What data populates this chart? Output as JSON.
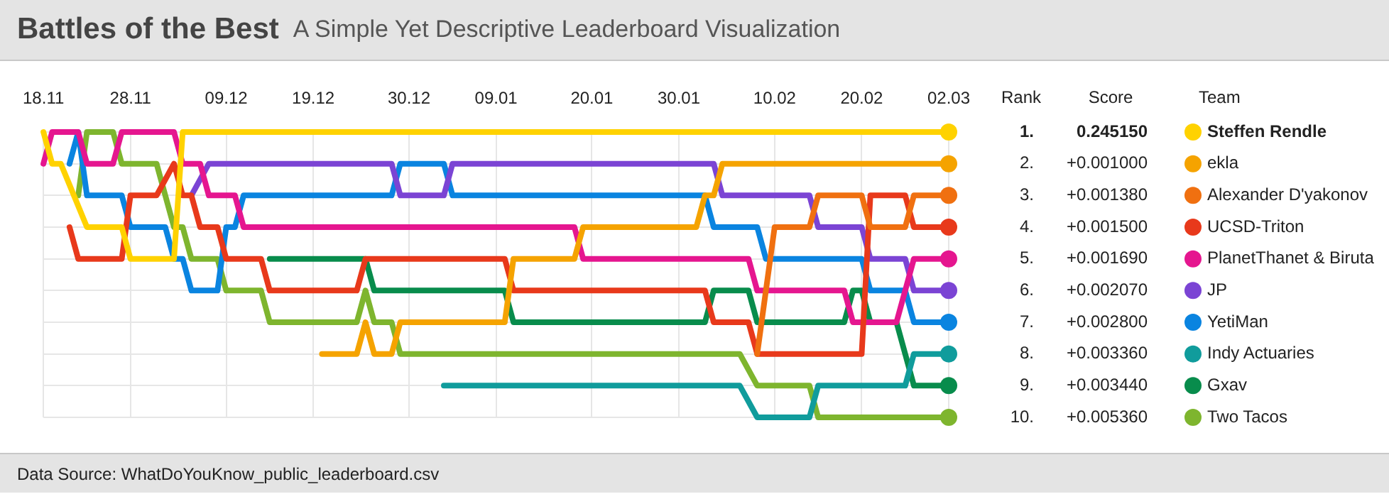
{
  "chart_data": {
    "type": "line",
    "title": "Battles of the Best",
    "subtitle": "A Simple Yet Descriptive Leaderboard Visualization",
    "ylabel": "Rank",
    "legend_title": "Team",
    "legend": "right",
    "grid": true,
    "line_style": "solid",
    "categories": [
      "18.11",
      null,
      null,
      null,
      null,
      null,
      null,
      null,
      null,
      null,
      "28.11",
      null,
      null,
      null,
      null,
      null,
      null,
      null,
      null,
      null,
      null,
      "09.12",
      null,
      null,
      null,
      null,
      null,
      null,
      null,
      null,
      null,
      "19.12",
      null,
      null,
      null,
      null,
      null,
      null,
      null,
      null,
      null,
      null,
      "30.12",
      null,
      null,
      null,
      null,
      null,
      null,
      null,
      null,
      null,
      "09.01",
      null,
      null,
      null,
      null,
      null,
      null,
      null,
      null,
      null,
      null,
      "20.01",
      null,
      null,
      null,
      null,
      null,
      null,
      null,
      null,
      null,
      "30.01",
      null,
      null,
      null,
      null,
      null,
      null,
      null,
      null,
      null,
      null,
      "10.02",
      null,
      null,
      null,
      null,
      null,
      null,
      null,
      null,
      null,
      "20.02",
      null,
      null,
      null,
      null,
      null,
      null,
      null,
      null,
      null,
      "02.03"
    ],
    "ylim": [
      10,
      1
    ],
    "yticks": [
      {
        "value": 1,
        "label": "1."
      },
      {
        "value": 2,
        "label": "2."
      },
      {
        "value": 3,
        "label": "3."
      },
      {
        "value": 4,
        "label": "4."
      },
      {
        "value": 5,
        "label": "5."
      },
      {
        "value": 6,
        "label": "6."
      },
      {
        "value": 7,
        "label": "7."
      },
      {
        "value": 8,
        "label": "8."
      },
      {
        "value": 9,
        "label": "9."
      },
      {
        "value": 10,
        "label": "10."
      }
    ],
    "series": [
      {
        "name": "Steffen Rendle",
        "color": "#ffd200",
        "values": [
          1,
          2,
          2,
          null,
          null,
          4,
          null,
          null,
          null,
          4,
          5,
          null,
          null,
          null,
          null,
          5,
          1,
          null,
          null,
          null,
          null,
          null,
          null,
          null,
          null,
          null,
          null,
          null,
          null,
          null,
          null,
          null,
          null,
          null,
          null,
          null,
          null,
          null,
          null,
          null,
          null,
          null,
          null,
          null,
          null,
          null,
          null,
          null,
          null,
          null,
          null,
          null,
          null,
          null,
          null,
          null,
          null,
          null,
          null,
          null,
          null,
          null,
          null,
          null,
          null,
          null,
          null,
          null,
          null,
          null,
          null,
          null,
          null,
          null,
          null,
          null,
          null,
          null,
          null,
          null,
          null,
          null,
          null,
          null,
          null,
          null,
          null,
          null,
          null,
          null,
          null,
          null,
          null,
          null,
          null,
          null,
          null,
          null,
          null,
          null,
          null,
          null,
          null,
          null,
          1
        ]
      },
      {
        "name": "ekla",
        "color": "#f5a300",
        "values": [
          null,
          null,
          null,
          null,
          null,
          null,
          null,
          null,
          null,
          null,
          null,
          null,
          null,
          null,
          null,
          null,
          null,
          null,
          null,
          null,
          null,
          null,
          null,
          null,
          null,
          null,
          null,
          null,
          null,
          null,
          null,
          null,
          8,
          null,
          null,
          null,
          8,
          7,
          8,
          null,
          8,
          7,
          null,
          null,
          null,
          null,
          null,
          null,
          null,
          null,
          null,
          null,
          null,
          7,
          5,
          null,
          null,
          null,
          null,
          null,
          null,
          5,
          4,
          null,
          null,
          null,
          null,
          null,
          null,
          null,
          null,
          null,
          null,
          null,
          null,
          4,
          3,
          3,
          2,
          null,
          null,
          null,
          null,
          null,
          null,
          null,
          null,
          null,
          null,
          null,
          null,
          null,
          null,
          null,
          null,
          null,
          null,
          null,
          null,
          null,
          null,
          null,
          null,
          null,
          2
        ]
      },
      {
        "name": "Alexander D'yakonov",
        "color": "#f07010",
        "values": [
          null,
          null,
          null,
          null,
          null,
          null,
          null,
          null,
          null,
          null,
          null,
          null,
          null,
          null,
          null,
          null,
          null,
          null,
          null,
          null,
          null,
          null,
          null,
          null,
          null,
          null,
          null,
          null,
          null,
          null,
          null,
          null,
          null,
          null,
          null,
          null,
          null,
          null,
          null,
          null,
          null,
          null,
          null,
          null,
          null,
          null,
          null,
          null,
          null,
          null,
          null,
          null,
          null,
          null,
          null,
          null,
          null,
          null,
          null,
          null,
          null,
          null,
          null,
          null,
          null,
          null,
          null,
          null,
          null,
          null,
          null,
          null,
          null,
          null,
          null,
          null,
          null,
          null,
          null,
          null,
          null,
          null,
          8,
          null,
          4,
          null,
          null,
          null,
          4,
          3,
          null,
          null,
          null,
          null,
          3,
          4,
          null,
          null,
          null,
          4,
          3,
          null,
          null,
          null,
          3
        ]
      },
      {
        "name": "UCSD-Triton",
        "color": "#e8391b",
        "values": [
          null,
          null,
          null,
          4,
          5,
          null,
          null,
          null,
          null,
          5,
          3,
          null,
          null,
          3,
          null,
          2,
          3,
          3,
          4,
          null,
          4,
          5,
          null,
          null,
          null,
          5,
          6,
          null,
          null,
          null,
          null,
          null,
          null,
          null,
          null,
          null,
          6,
          5,
          null,
          null,
          null,
          null,
          null,
          null,
          null,
          null,
          null,
          null,
          null,
          null,
          null,
          null,
          null,
          5,
          6,
          null,
          null,
          null,
          null,
          null,
          null,
          null,
          null,
          null,
          null,
          null,
          null,
          null,
          null,
          null,
          null,
          null,
          null,
          null,
          null,
          null,
          6,
          7,
          null,
          null,
          null,
          7,
          8,
          null,
          null,
          null,
          null,
          null,
          null,
          null,
          null,
          null,
          null,
          null,
          8,
          3,
          null,
          null,
          null,
          3,
          4,
          null,
          null,
          null,
          4
        ]
      },
      {
        "name": "PlanetThanet & Biruta",
        "color": "#e5168f",
        "values": [
          2,
          1,
          null,
          null,
          1,
          2,
          null,
          null,
          2,
          1,
          null,
          null,
          null,
          null,
          null,
          1,
          2,
          null,
          2,
          3,
          null,
          null,
          3,
          4,
          null,
          null,
          null,
          null,
          null,
          null,
          null,
          null,
          null,
          null,
          null,
          null,
          null,
          null,
          null,
          null,
          null,
          null,
          null,
          null,
          null,
          null,
          null,
          null,
          null,
          null,
          null,
          null,
          null,
          null,
          null,
          null,
          null,
          null,
          null,
          null,
          null,
          4,
          5,
          null,
          null,
          null,
          null,
          null,
          null,
          null,
          null,
          null,
          null,
          null,
          null,
          null,
          null,
          null,
          null,
          null,
          null,
          5,
          6,
          null,
          null,
          null,
          null,
          null,
          null,
          null,
          null,
          null,
          6,
          7,
          null,
          null,
          null,
          null,
          7,
          null,
          5,
          null,
          null,
          null,
          5
        ]
      },
      {
        "name": "JP",
        "color": "#7b44d4",
        "values": [
          null,
          null,
          null,
          null,
          null,
          null,
          null,
          null,
          null,
          null,
          null,
          null,
          null,
          null,
          null,
          null,
          null,
          3,
          null,
          2,
          null,
          null,
          null,
          null,
          null,
          null,
          null,
          null,
          null,
          null,
          null,
          null,
          null,
          null,
          null,
          null,
          null,
          null,
          null,
          null,
          2,
          3,
          null,
          null,
          null,
          null,
          3,
          2,
          null,
          null,
          null,
          null,
          null,
          null,
          null,
          null,
          null,
          null,
          null,
          null,
          null,
          null,
          null,
          null,
          null,
          null,
          null,
          null,
          null,
          null,
          null,
          null,
          null,
          null,
          null,
          null,
          null,
          2,
          3,
          null,
          null,
          null,
          null,
          null,
          null,
          null,
          null,
          null,
          3,
          4,
          null,
          null,
          null,
          null,
          4,
          5,
          null,
          null,
          null,
          5,
          6,
          null,
          null,
          null,
          6
        ]
      },
      {
        "name": "YetiMan",
        "color": "#0a84e0",
        "values": [
          null,
          null,
          null,
          2,
          1,
          3,
          null,
          null,
          null,
          3,
          4,
          null,
          null,
          null,
          4,
          5,
          5,
          6,
          null,
          null,
          6,
          4,
          4,
          3,
          null,
          null,
          null,
          null,
          null,
          null,
          null,
          null,
          null,
          null,
          null,
          null,
          null,
          null,
          null,
          null,
          3,
          2,
          null,
          null,
          null,
          null,
          2,
          3,
          null,
          null,
          null,
          null,
          null,
          null,
          null,
          null,
          null,
          null,
          null,
          null,
          null,
          null,
          null,
          null,
          null,
          null,
          null,
          null,
          null,
          null,
          null,
          null,
          null,
          null,
          null,
          null,
          3,
          4,
          null,
          null,
          null,
          null,
          4,
          5,
          null,
          null,
          null,
          null,
          null,
          null,
          null,
          null,
          null,
          null,
          5,
          6,
          null,
          null,
          null,
          6,
          7,
          null,
          null,
          null,
          7
        ]
      },
      {
        "name": "Indy Actuaries",
        "color": "#109c9c",
        "values": [
          null,
          null,
          null,
          null,
          null,
          null,
          null,
          null,
          null,
          null,
          null,
          null,
          null,
          null,
          null,
          null,
          null,
          null,
          null,
          null,
          null,
          null,
          null,
          null,
          null,
          null,
          null,
          null,
          null,
          null,
          null,
          null,
          null,
          null,
          null,
          null,
          null,
          null,
          null,
          null,
          null,
          null,
          null,
          null,
          null,
          null,
          9,
          null,
          null,
          null,
          null,
          null,
          null,
          null,
          null,
          null,
          null,
          null,
          null,
          null,
          null,
          null,
          null,
          null,
          null,
          null,
          null,
          null,
          null,
          null,
          null,
          null,
          null,
          null,
          null,
          null,
          null,
          null,
          null,
          null,
          9,
          null,
          10,
          null,
          null,
          null,
          null,
          null,
          10,
          9,
          null,
          null,
          null,
          null,
          null,
          null,
          null,
          null,
          null,
          9,
          8,
          null,
          null,
          null,
          8
        ]
      },
      {
        "name": "Gxav",
        "color": "#088c4c",
        "values": [
          null,
          null,
          null,
          null,
          null,
          null,
          null,
          null,
          null,
          null,
          null,
          null,
          null,
          null,
          null,
          null,
          null,
          null,
          null,
          null,
          null,
          null,
          null,
          null,
          null,
          null,
          5,
          null,
          null,
          null,
          null,
          null,
          null,
          null,
          null,
          null,
          null,
          5,
          6,
          null,
          null,
          null,
          null,
          null,
          null,
          null,
          null,
          null,
          null,
          null,
          null,
          null,
          null,
          6,
          7,
          null,
          null,
          null,
          null,
          null,
          null,
          null,
          null,
          null,
          null,
          null,
          null,
          null,
          null,
          null,
          null,
          null,
          null,
          null,
          null,
          null,
          7,
          6,
          null,
          null,
          null,
          6,
          7,
          null,
          null,
          null,
          null,
          null,
          null,
          null,
          null,
          null,
          7,
          6,
          6,
          7,
          null,
          null,
          7,
          null,
          9,
          null,
          null,
          null,
          9
        ]
      },
      {
        "name": "Two Tacos",
        "color": "#7eb52e",
        "values": [
          null,
          null,
          null,
          null,
          3,
          1,
          null,
          null,
          1,
          2,
          null,
          null,
          null,
          2,
          null,
          4,
          4,
          5,
          null,
          null,
          5,
          6,
          null,
          null,
          null,
          6,
          7,
          null,
          null,
          null,
          null,
          null,
          null,
          null,
          null,
          null,
          7,
          6,
          7,
          null,
          7,
          8,
          null,
          null,
          null,
          null,
          null,
          null,
          null,
          null,
          null,
          null,
          null,
          null,
          null,
          null,
          null,
          null,
          null,
          null,
          null,
          null,
          null,
          null,
          null,
          null,
          null,
          null,
          null,
          null,
          null,
          null,
          null,
          null,
          null,
          null,
          null,
          null,
          null,
          null,
          8,
          null,
          9,
          null,
          null,
          null,
          null,
          null,
          9,
          10,
          null,
          null,
          null,
          null,
          null,
          null,
          null,
          null,
          null,
          null,
          null,
          null,
          null,
          null,
          10
        ]
      }
    ],
    "annotations": [
      "Score",
      "0.245150",
      "+0.001000",
      "+0.001380",
      "+0.001500",
      "+0.001690",
      "+0.002070",
      "+0.002800",
      "+0.003360",
      "+0.003440",
      "+0.005360",
      "Data Source: WhatDoYouKnow_public_leaderboard.csv"
    ]
  }
}
